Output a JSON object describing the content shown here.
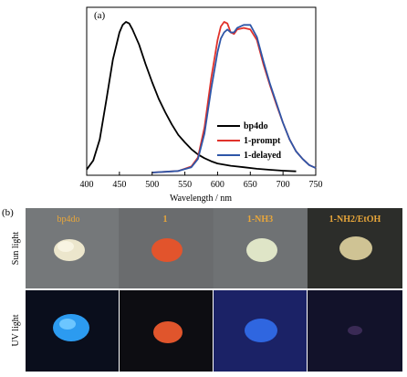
{
  "figure": {
    "panel_a_label": "(a)",
    "panel_b_label": "(b)"
  },
  "chart_data": {
    "type": "line",
    "title": "",
    "xlabel": "Wavelength / nm",
    "ylabel": "",
    "xlim": [
      400,
      750
    ],
    "ylim": [
      0,
      1.0
    ],
    "xticks": [
      "400",
      "450",
      "500",
      "550",
      "600",
      "650",
      "700",
      "750"
    ],
    "grid": false,
    "legend_position": "center-right",
    "legend": [
      "bp4do",
      "1-prompt",
      "1-delayed"
    ],
    "series": [
      {
        "name": "bp4do",
        "color": "#000000",
        "x": [
          400,
          410,
          420,
          430,
          440,
          450,
          455,
          460,
          465,
          470,
          480,
          490,
          500,
          510,
          520,
          530,
          540,
          550,
          560,
          570,
          580,
          590,
          600,
          620,
          640,
          660,
          680,
          700,
          720
        ],
        "y": [
          0.02,
          0.08,
          0.22,
          0.48,
          0.75,
          0.93,
          0.98,
          1.0,
          0.99,
          0.95,
          0.85,
          0.72,
          0.6,
          0.49,
          0.4,
          0.32,
          0.25,
          0.2,
          0.155,
          0.12,
          0.095,
          0.075,
          0.06,
          0.045,
          0.035,
          0.025,
          0.018,
          0.012,
          0.008
        ]
      },
      {
        "name": "1-prompt",
        "color": "#e0322b",
        "x": [
          500,
          520,
          540,
          560,
          570,
          580,
          590,
          600,
          605,
          610,
          615,
          620,
          625,
          630,
          640,
          650,
          660,
          670,
          680,
          690,
          700,
          710,
          720,
          730,
          740,
          750
        ],
        "y": [
          0.0,
          0.005,
          0.01,
          0.04,
          0.1,
          0.3,
          0.62,
          0.88,
          0.97,
          1.0,
          0.99,
          0.93,
          0.92,
          0.95,
          0.96,
          0.95,
          0.88,
          0.72,
          0.58,
          0.45,
          0.33,
          0.22,
          0.14,
          0.09,
          0.05,
          0.03
        ]
      },
      {
        "name": "1-delayed",
        "color": "#2e56a8",
        "x": [
          500,
          520,
          540,
          560,
          570,
          580,
          590,
          600,
          605,
          610,
          615,
          620,
          625,
          630,
          640,
          650,
          660,
          670,
          680,
          690,
          700,
          710,
          720,
          730,
          740,
          750
        ],
        "y": [
          0.0,
          0.005,
          0.01,
          0.035,
          0.09,
          0.26,
          0.55,
          0.8,
          0.89,
          0.93,
          0.95,
          0.93,
          0.93,
          0.96,
          0.98,
          0.98,
          0.9,
          0.74,
          0.59,
          0.46,
          0.33,
          0.22,
          0.14,
          0.09,
          0.05,
          0.03
        ]
      }
    ]
  },
  "photo_grid": {
    "column_labels": [
      "bp4do",
      "1",
      "1-NH3",
      "1-NH2/EtOH"
    ],
    "row_labels": [
      "Sun light",
      "UV light"
    ],
    "row_backgrounds": [
      "#6b6e70",
      "#0c0f1e"
    ],
    "column_backgrounds_uv": [
      "#0a0e1c",
      "#0d0d12",
      "#1b2266",
      "#12122a"
    ],
    "sun_sample_colors": [
      "#ece6cc",
      "#e2542c",
      "#dfe5c7",
      "#cfc394"
    ],
    "uv_sample_colors": [
      "#2c9bf0",
      "#e0552c",
      "#2f66e0",
      "#3a2a55"
    ],
    "label_color": "#e8a63a"
  }
}
